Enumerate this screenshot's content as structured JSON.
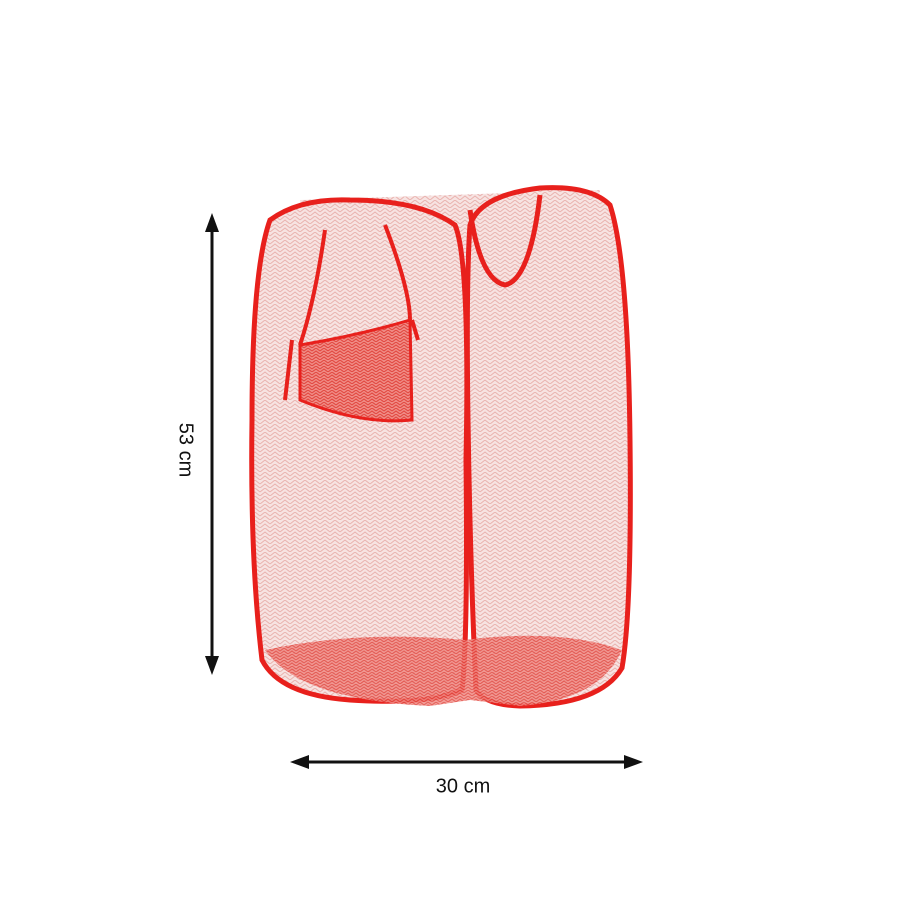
{
  "product": {
    "color": "#e8201c",
    "mesh_color": "#f6d8d6"
  },
  "dimensions": {
    "height_label": "53 cm",
    "width_label": "30 cm"
  }
}
